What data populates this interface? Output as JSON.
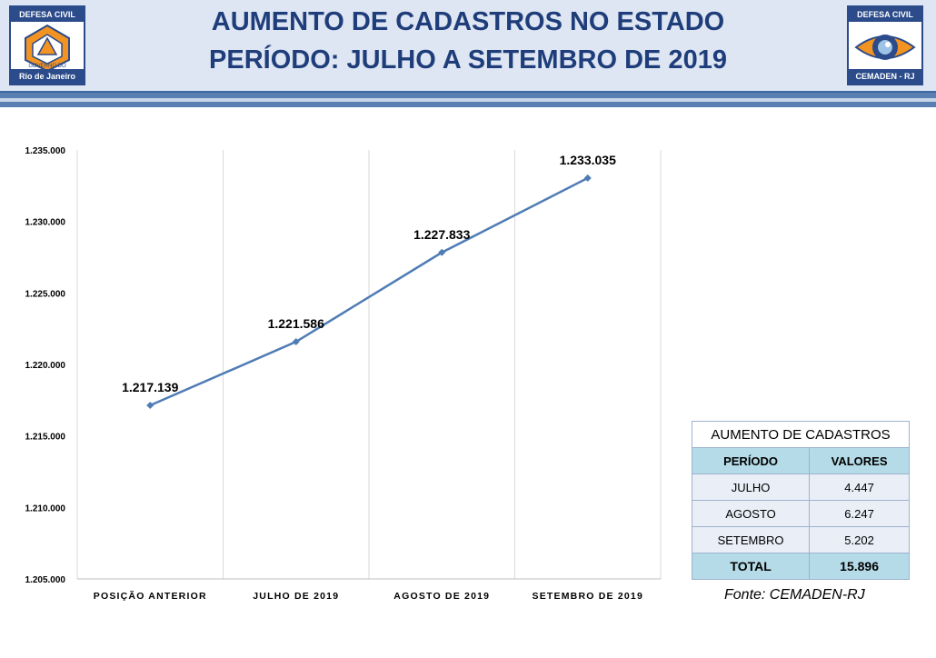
{
  "header": {
    "title_line1": "AUMENTO DE CADASTROS NO ESTADO",
    "title_line2": "PERÍODO: JULHO A SETEMBRO DE 2019",
    "logo_left": {
      "top": "DEFESA CIVIL",
      "govt": "GOVERNO DO",
      "bottom": "Rio de Janeiro"
    },
    "logo_right": {
      "top": "DEFESA CIVIL",
      "bottom": "CEMADEN - RJ"
    }
  },
  "chart_data": {
    "type": "line",
    "title": "",
    "categories": [
      "POSIÇÃO ANTERIOR",
      "JULHO DE 2019",
      "AGOSTO DE 2019",
      "SETEMBRO DE 2019"
    ],
    "values": [
      1217139,
      1221586,
      1227833,
      1233035
    ],
    "data_labels": [
      "1.217.139",
      "1.221.586",
      "1.227.833",
      "1.233.035"
    ],
    "yticks": [
      1205000,
      1210000,
      1215000,
      1220000,
      1225000,
      1230000,
      1235000
    ],
    "ytick_labels": [
      "1.205.000",
      "1.210.000",
      "1.215.000",
      "1.220.000",
      "1.225.000",
      "1.230.000",
      "1.235.000"
    ],
    "ylim": [
      1205000,
      1235000
    ],
    "line_color": "#4f7cb5",
    "grid": "vertical"
  },
  "table": {
    "caption": "AUMENTO DE CADASTROS",
    "headers": [
      "PERÍODO",
      "VALORES"
    ],
    "rows": [
      {
        "periodo": "JULHO",
        "valor": "4.447"
      },
      {
        "periodo": "AGOSTO",
        "valor": "6.247"
      },
      {
        "periodo": "SETEMBRO",
        "valor": "5.202"
      }
    ],
    "total_label": "TOTAL",
    "total_value": "15.896"
  },
  "source": "Fonte: CEMADEN-RJ"
}
